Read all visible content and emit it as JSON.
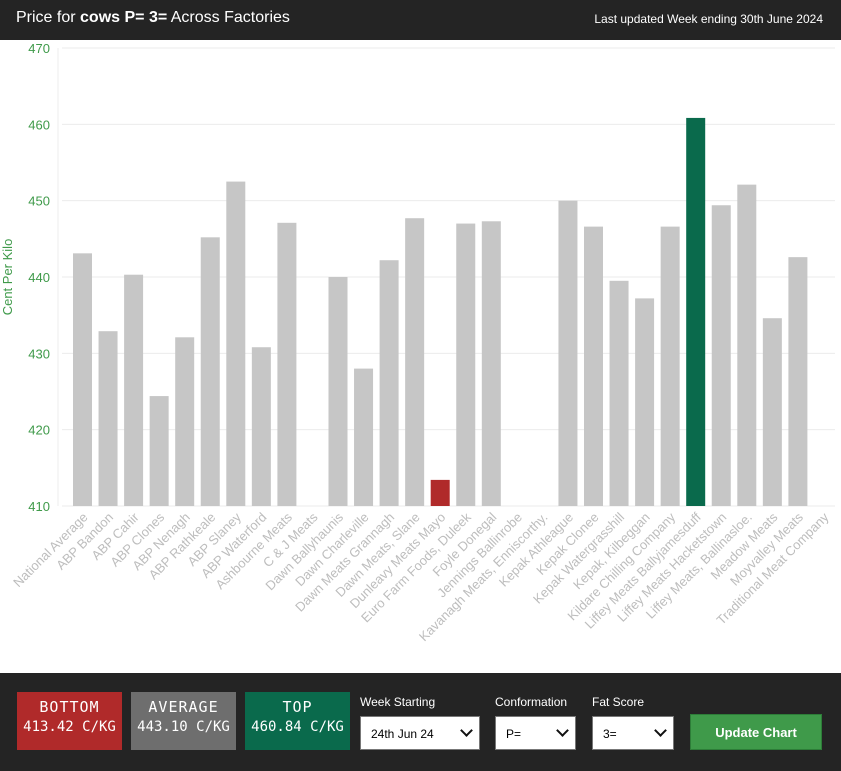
{
  "header": {
    "title_prefix": "Price for ",
    "title_bold": "cows P= 3=",
    "title_suffix": " Across Factories",
    "updated": "Last updated Week ending 30th June 2024"
  },
  "colors": {
    "default_bar": "#c6c6c6",
    "bottom_bar": "#b02a2a",
    "top_bar": "#0a6a4c",
    "axis_text": "#3f9a4a",
    "category_text": "#bdbdbd"
  },
  "chart_data": {
    "type": "bar",
    "ylabel": "Cent Per Kilo",
    "ylim": [
      410,
      470
    ],
    "yticks": [
      410,
      420,
      430,
      440,
      450,
      460,
      470
    ],
    "grid": true,
    "categories": [
      "National Average",
      "ABP Bandon",
      "ABP Cahir",
      "ABP Clones",
      "ABP Nenagh",
      "ABP Rathkeale",
      "ABP Slaney",
      "ABP Waterford",
      "Ashbourne Meats",
      "C & J Meats",
      "Dawn Ballyhaunis",
      "Dawn Charleville",
      "Dawn Meats Grannagh",
      "Dawn Meats, Slane",
      "Dunleavy Meats Mayo",
      "Euro Farm Foods, Duleek",
      "Foyle Donegal",
      "Jennings Ballinrobe",
      "Kavanagh Meats, Enniscorthy.",
      "Kepak Athleague",
      "Kepak Clonee",
      "Kepak Watergrasshill",
      "Kepak, Kilbeggan",
      "Kildare Chilling Company",
      "Liffey Meats Ballyjamesduff",
      "Liffey Meats Hacketstown",
      "Liffey Meats, Ballinasloe.",
      "Meadow Meats",
      "Moyvalley Meats",
      "Traditional Meat Company"
    ],
    "values": [
      443.1,
      432.9,
      440.3,
      424.4,
      432.1,
      445.2,
      452.5,
      430.8,
      447.1,
      null,
      440.0,
      428.0,
      442.2,
      447.7,
      413.42,
      447.0,
      447.3,
      null,
      null,
      450.0,
      446.6,
      439.5,
      437.2,
      446.6,
      460.84,
      449.4,
      452.1,
      434.6,
      442.6,
      null
    ],
    "highlight_bottom": "Dunleavy Meats Mayo",
    "highlight_top": "Liffey Meats Ballyjamesduff"
  },
  "stats": {
    "bottom_label": "BOTTOM",
    "bottom_value": "413.42 C/KG",
    "average_label": "AVERAGE",
    "average_value": "443.10 C/KG",
    "top_label": "TOP",
    "top_value": "460.84 C/KG"
  },
  "controls": {
    "week_label": "Week Starting",
    "week_value": "24th Jun 24",
    "conformation_label": "Conformation",
    "conformation_value": "P=",
    "fat_label": "Fat Score",
    "fat_value": "3=",
    "update_button": "Update Chart"
  }
}
